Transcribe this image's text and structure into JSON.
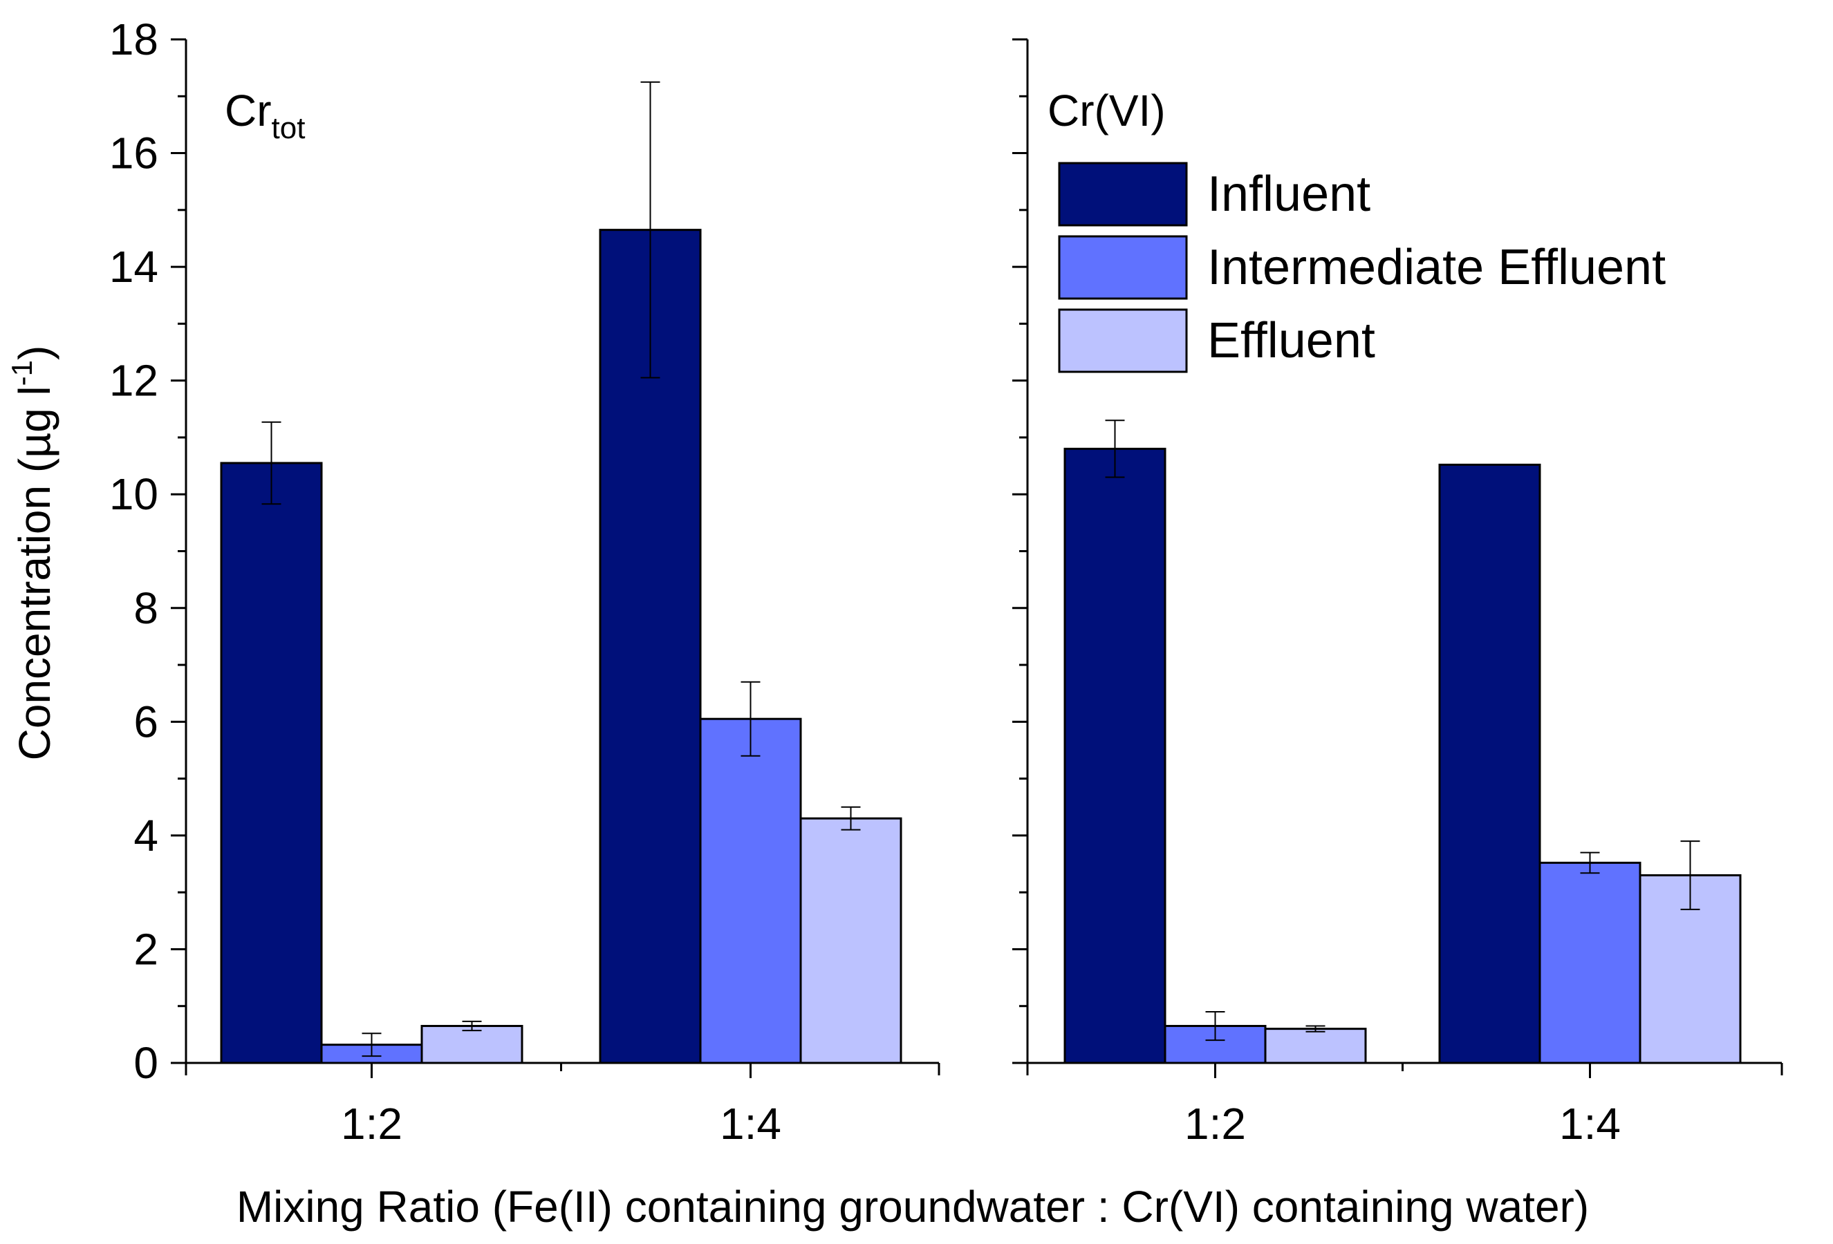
{
  "chart_data": {
    "type": "bar",
    "ylabel": {
      "main": "Concentration (µg l",
      "sup": "-1",
      "close": ")"
    },
    "xlabel": "Mixing Ratio (Fe(II) containing groundwater : Cr(VI) containing water)",
    "ylim": [
      0,
      18
    ],
    "yticks": [
      0,
      2,
      4,
      6,
      8,
      10,
      12,
      14,
      16,
      18
    ],
    "ytick_labels": [
      "0",
      "2",
      "4",
      "6",
      "8",
      "10",
      "12",
      "14",
      "16",
      "18"
    ],
    "categories": [
      "1:2",
      "1:4"
    ],
    "legend": {
      "position": "top-right",
      "entries": [
        "Influent",
        "Intermediate Effluent",
        "Effluent"
      ]
    },
    "colors": [
      "#00107A",
      "#6072FF",
      "#BCC2FF"
    ],
    "panels": [
      {
        "title_main": "Cr",
        "title_sub": "tot",
        "series": [
          {
            "name": "Influent",
            "values": [
              10.55,
              14.65
            ],
            "errors": [
              0.72,
              2.6
            ]
          },
          {
            "name": "Intermediate Effluent",
            "values": [
              0.32,
              6.05
            ],
            "errors": [
              0.2,
              0.65
            ]
          },
          {
            "name": "Effluent",
            "values": [
              0.65,
              4.3
            ],
            "errors": [
              0.08,
              0.2
            ]
          }
        ]
      },
      {
        "title_main": "Cr(VI)",
        "title_sub": "",
        "series": [
          {
            "name": "Influent",
            "values": [
              10.8,
              10.52
            ],
            "errors": [
              0.5,
              0
            ]
          },
          {
            "name": "Intermediate Effluent",
            "values": [
              0.65,
              3.52
            ],
            "errors": [
              0.25,
              0.18
            ]
          },
          {
            "name": "Effluent",
            "values": [
              0.6,
              3.3
            ],
            "errors": [
              0.05,
              0.6
            ]
          }
        ]
      }
    ]
  }
}
